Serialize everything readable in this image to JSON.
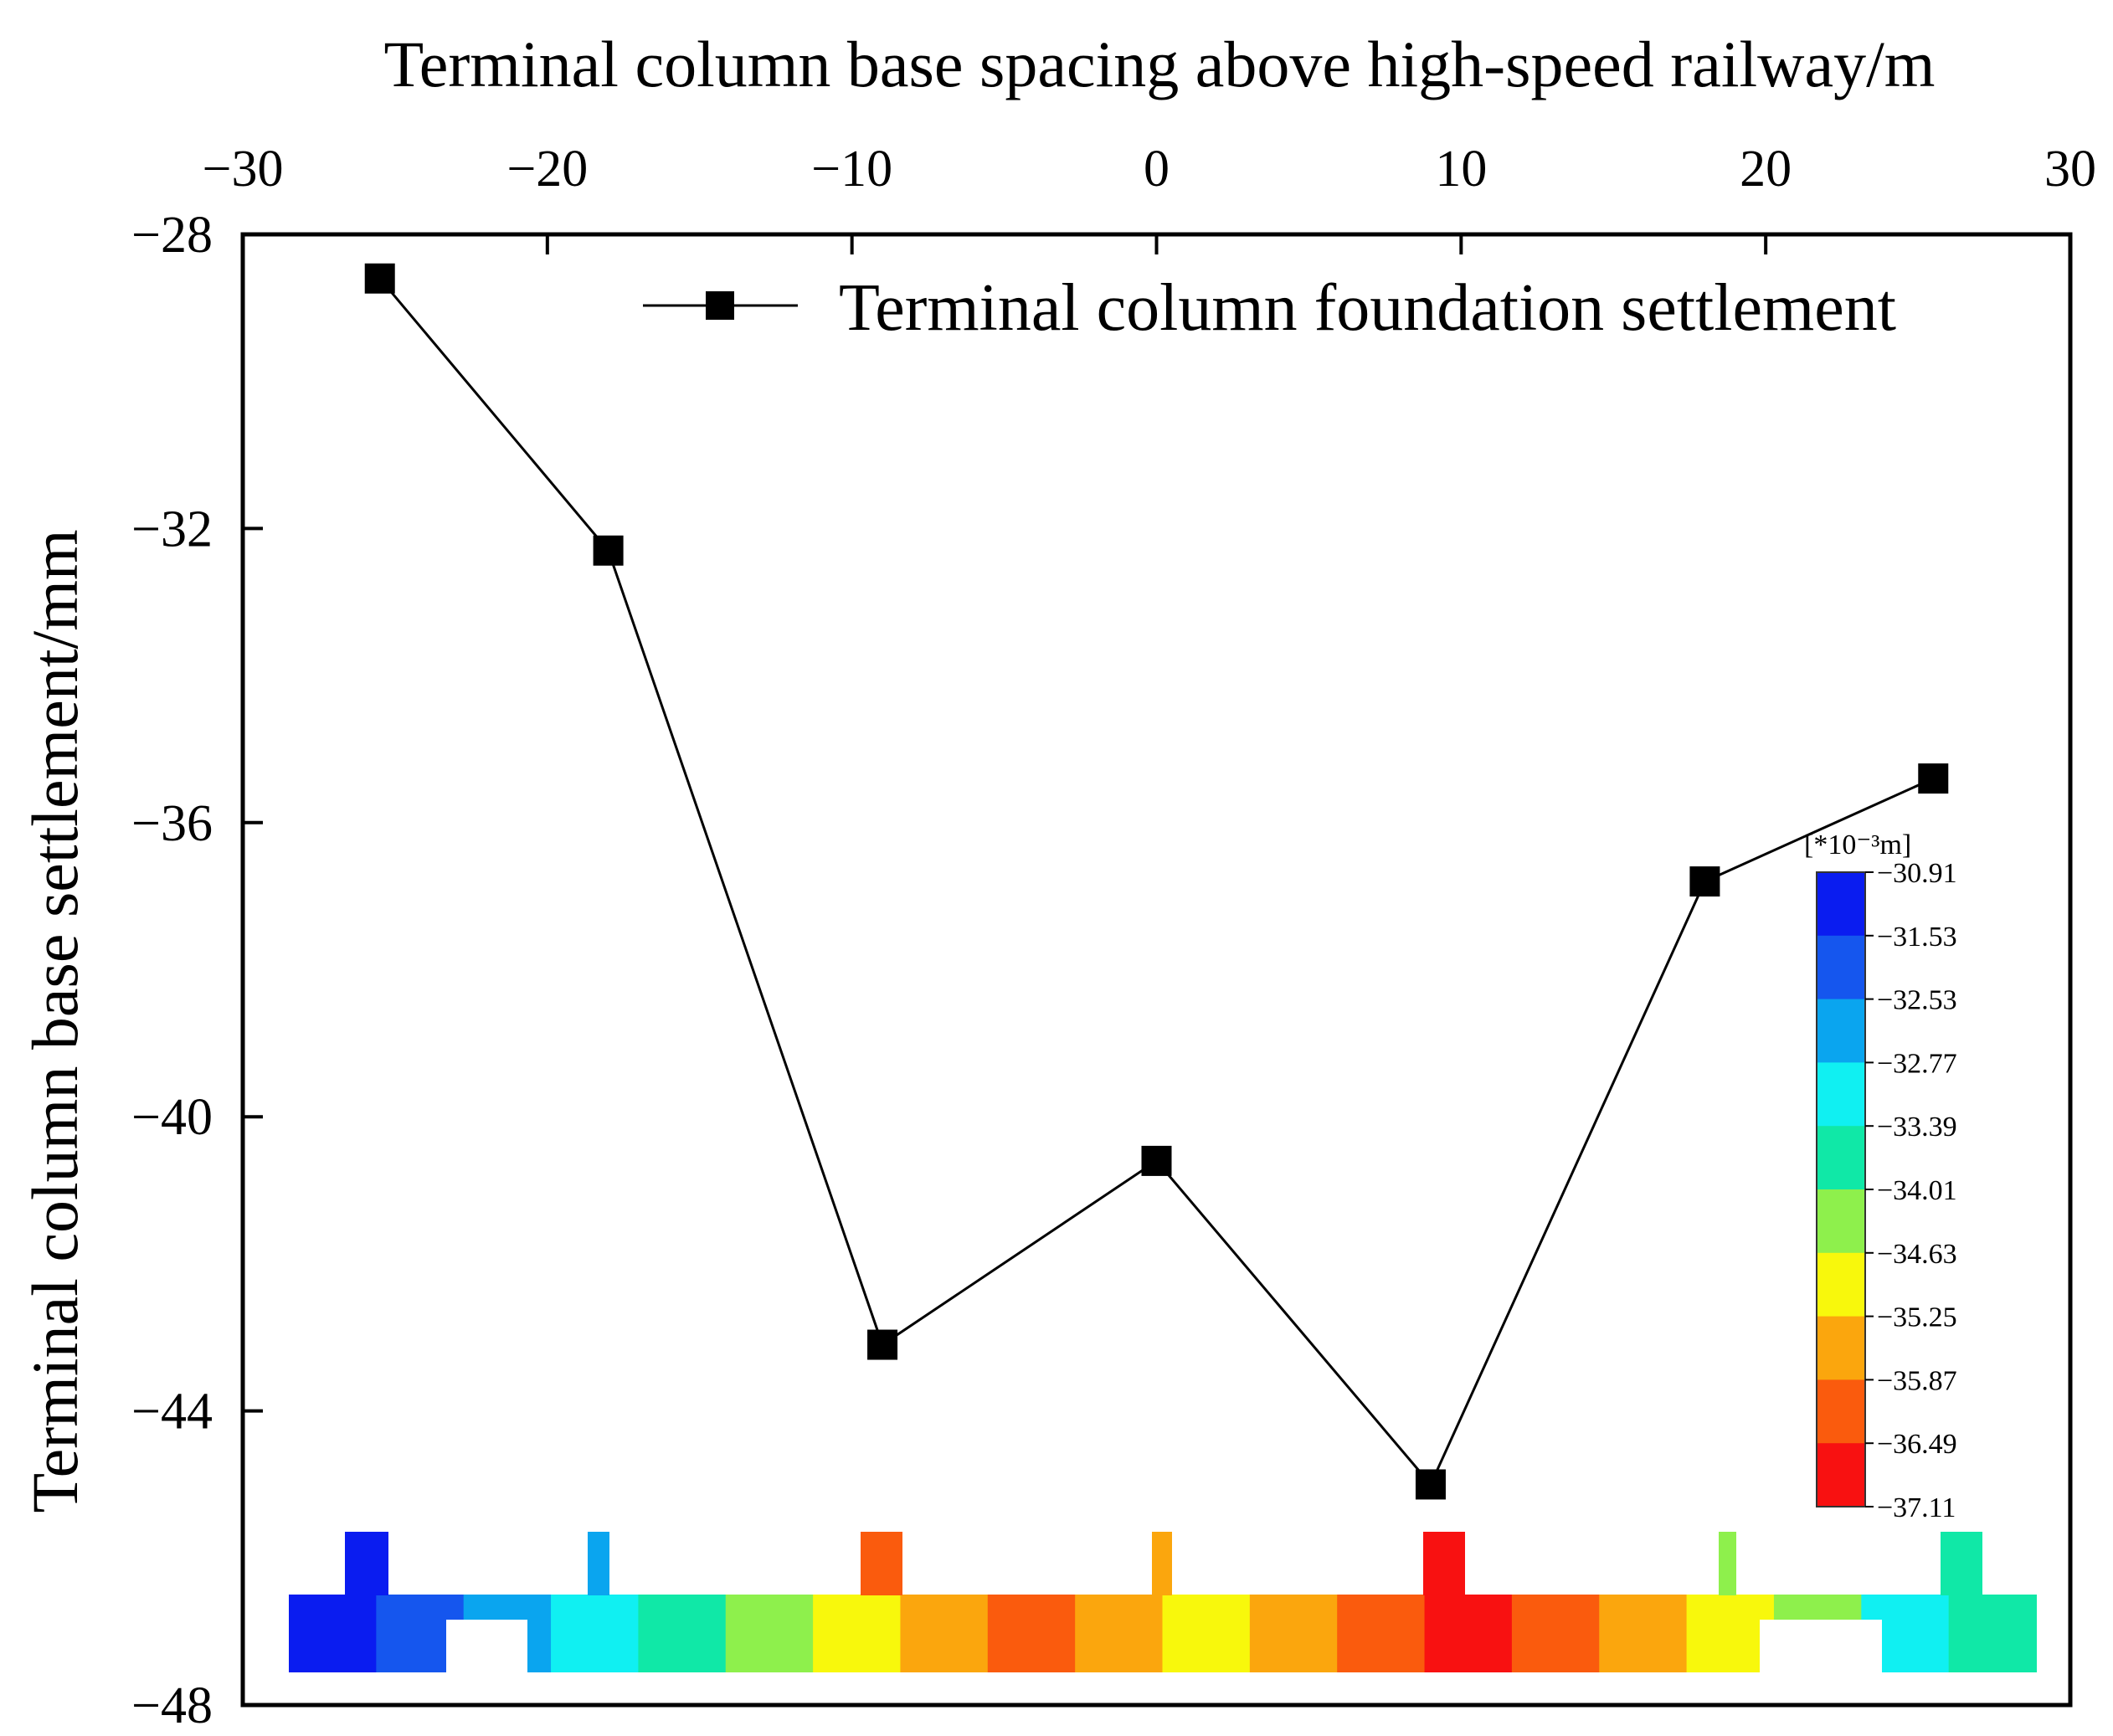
{
  "chart_data": {
    "type": "line",
    "x_axis_title": "Terminal column base spacing above high-speed railway/m",
    "y_axis_title": "Terminal column base settlement/mm",
    "xlim": [
      -30,
      30
    ],
    "ylim": [
      -48,
      -28
    ],
    "x_ticks": [
      -30,
      -20,
      -10,
      0,
      10,
      20,
      30
    ],
    "x_tick_labels": [
      "−30",
      "−20",
      "−10",
      "0",
      "10",
      "20",
      "30"
    ],
    "y_ticks": [
      -28,
      -32,
      -36,
      -40,
      -44,
      -48
    ],
    "y_tick_labels": [
      "−28",
      "−32",
      "−36",
      "−40",
      "−44",
      "−48"
    ],
    "x_axis_position": "top",
    "grid": false,
    "legend_position": "top-right",
    "series": [
      {
        "name": "Terminal column foundation settlement",
        "marker": "square",
        "color": "#000000",
        "x": [
          -25.5,
          -18,
          -9,
          0,
          9,
          18,
          25.5
        ],
        "y": [
          -28.6,
          -32.3,
          -43.1,
          -40.6,
          -45.0,
          -36.8,
          -35.4
        ]
      }
    ],
    "colorbar": {
      "unit": "[*10⁻³m]",
      "labels": [
        "−30.91",
        "−31.53",
        "−32.53",
        "−32.77",
        "−33.39",
        "−34.01",
        "−34.63",
        "−35.25",
        "−35.87",
        "−36.49",
        "−37.11"
      ],
      "colors": [
        "#0a1cf0",
        "#1556ee",
        "#0aa5ef",
        "#10f0f2",
        "#10e8a7",
        "#8ef04c",
        "#f8f80c",
        "#fba60d",
        "#fa5b0d",
        "#f81111"
      ]
    },
    "contour_strip_colors": [
      "#0a1cf0",
      "#1556ee",
      "#0aa5ef",
      "#10f0f2",
      "#10e8a7",
      "#8ef04c",
      "#f8f80c",
      "#fba60d",
      "#fa5b0d",
      "#fba60d",
      "#f8f80c",
      "#fba60d",
      "#fa5b0d",
      "#f81111",
      "#fa5b0d",
      "#fba60d",
      "#f8f80c",
      "#8ef04c",
      "#10f0f2",
      "#10e8a7"
    ]
  }
}
